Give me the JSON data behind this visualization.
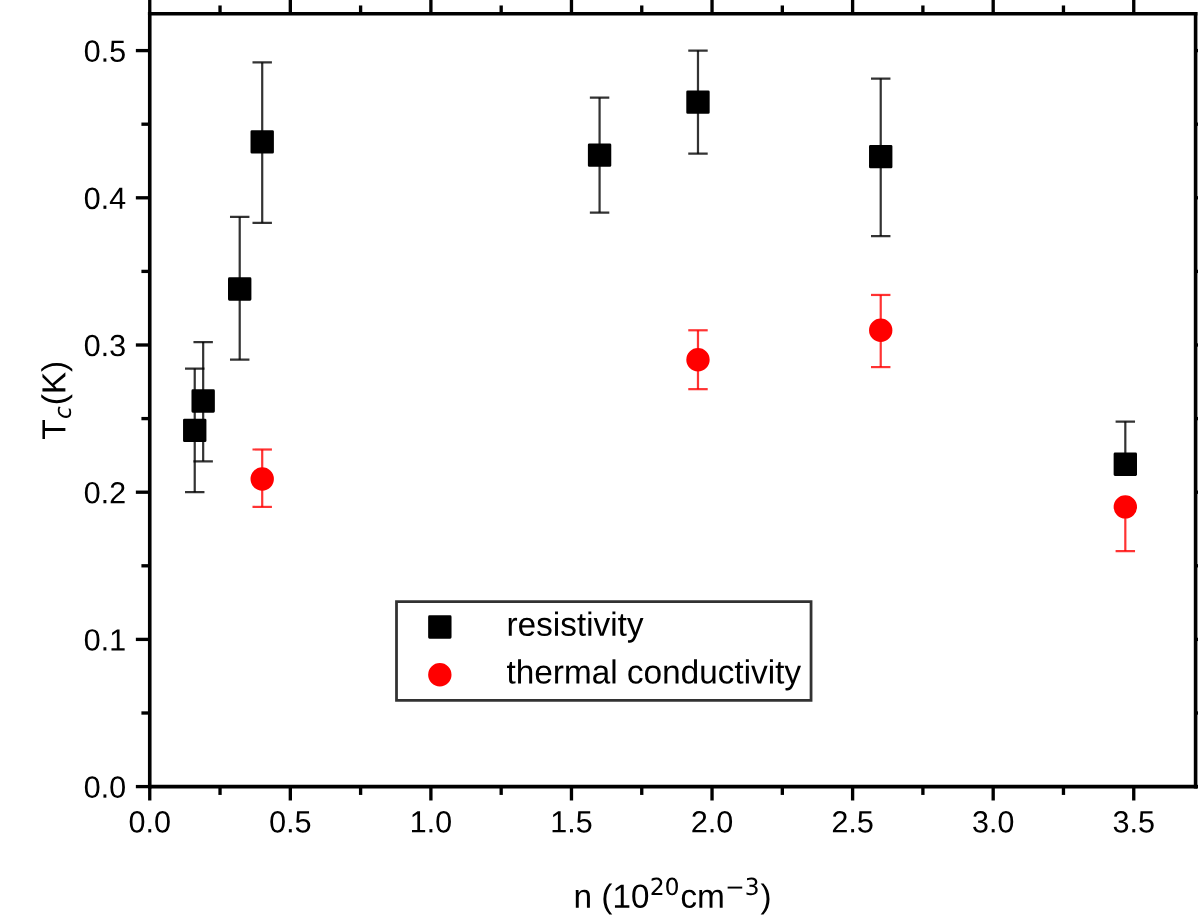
{
  "chart_data": {
    "type": "scatter",
    "xlabel": "n (10$^{20}$cm$^{−3}$)",
    "ylabel": "T$_{c}$(K)",
    "xlim": [
      0,
      3.72
    ],
    "xticks": [
      {
        "value": 0,
        "label": "0.0"
      },
      0.5,
      {
        "value": 1,
        "label": "1.0"
      },
      1.5,
      {
        "value": 2,
        "label": "2.0"
      },
      2.5,
      {
        "value": 3,
        "label": "3.0"
      },
      3.5
    ],
    "ylim": [
      0,
      0.525
    ],
    "yticks": [
      {
        "value": 0,
        "label": "0.0"
      },
      0.1,
      0.2,
      0.3,
      0.4,
      0.5
    ],
    "grid": false,
    "legend": "bottom",
    "series": [
      {
        "name": "resistivity",
        "color": "#000000",
        "marker": "square",
        "x": [
          0.16,
          0.19,
          0.32,
          0.4,
          1.6,
          1.95,
          2.6,
          3.47
        ],
        "values": [
          0.242,
          0.262,
          0.338,
          0.438,
          0.429,
          0.465,
          0.428,
          0.219
        ],
        "errors": [
          [
            0.2,
            0.284
          ],
          [
            0.221,
            0.302
          ],
          [
            0.29,
            0.387
          ],
          [
            0.383,
            0.492
          ],
          [
            0.39,
            0.468
          ],
          [
            0.43,
            0.5
          ],
          [
            0.374,
            0.481
          ],
          [
            0.219,
            0.248
          ]
        ]
      },
      {
        "name": "thermal conductivity",
        "color": "#ff0000",
        "marker": "circle",
        "x": [
          0.4,
          1.95,
          2.6,
          3.47
        ],
        "values": [
          0.209,
          0.29,
          0.31,
          0.19
        ],
        "errors": [
          [
            0.19,
            0.229
          ],
          [
            0.27,
            0.31
          ],
          [
            0.285,
            0.334
          ],
          [
            0.16,
            0.19
          ]
        ]
      }
    ]
  }
}
